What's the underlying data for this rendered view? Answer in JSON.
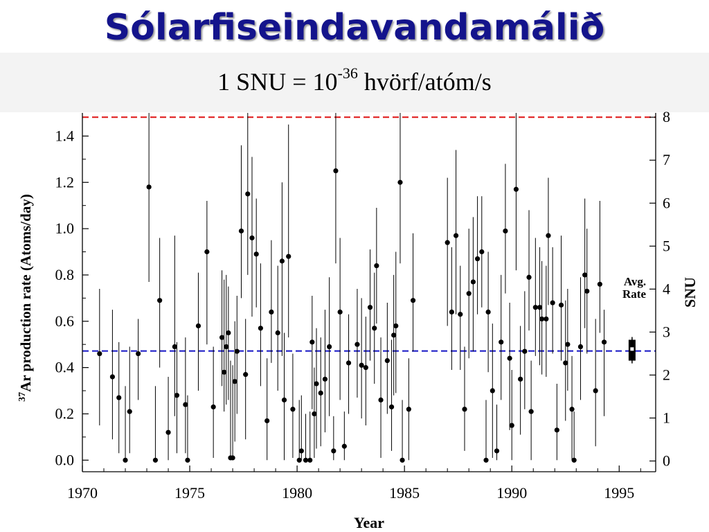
{
  "slide": {
    "title": "Sólarfiseindavandamálið",
    "subtitle_prefix": "1 SNU = 10",
    "subtitle_exponent": "-36",
    "subtitle_suffix": " hvörf/atóm/s"
  },
  "chart_data": {
    "type": "scatter",
    "xlabel": "Year",
    "ylabel_superscript": "37",
    "ylabel": "Ar production rate (Atoms/day)",
    "y2label": "SNU",
    "xlim": [
      1970,
      1996.7
    ],
    "ylim": [
      -0.05,
      1.5
    ],
    "y2lim": [
      -0.25,
      8.1
    ],
    "xticks": [
      1970,
      1975,
      1980,
      1985,
      1990,
      1995
    ],
    "yticks": [
      0.0,
      0.2,
      0.4,
      0.6,
      0.8,
      1.0,
      1.2,
      1.4
    ],
    "y2ticks": [
      0,
      1,
      2,
      3,
      4,
      5,
      6,
      7,
      8
    ],
    "xtick_labels": [
      "1970",
      "1975",
      "1980",
      "1985",
      "1990",
      "1995"
    ],
    "ytick_labels": [
      "0.0",
      "0.2",
      "0.4",
      "0.6",
      "0.8",
      "1.0",
      "1.2",
      "1.4"
    ],
    "y2tick_labels": [
      "0",
      "1",
      "2",
      "3",
      "4",
      "5",
      "6",
      "7",
      "8"
    ],
    "reference_lines": [
      {
        "value_snu": 8.0,
        "color": "#e02020"
      },
      {
        "value_snu": 2.56,
        "color": "#2020c8"
      }
    ],
    "avg_rate": {
      "label_line1": "Avg.",
      "label_line2": "Rate",
      "x": 1995.6,
      "y": 0.48,
      "low": 0.43,
      "high": 0.52
    },
    "points": [
      [
        1970.8,
        0.46,
        0.15,
        0.74
      ],
      [
        1971.4,
        0.36,
        0.09,
        0.65
      ],
      [
        1971.7,
        0.27,
        0.03,
        0.51
      ],
      [
        1972.0,
        0.0,
        0.0,
        0.32
      ],
      [
        1972.2,
        0.21,
        0.03,
        0.49
      ],
      [
        1972.6,
        0.46,
        0.26,
        0.61
      ],
      [
        1973.1,
        1.18,
        0.77,
        1.5
      ],
      [
        1973.4,
        0.0,
        0.0,
        0.32
      ],
      [
        1973.6,
        0.69,
        0.4,
        0.96
      ],
      [
        1974.0,
        0.12,
        0.0,
        0.36
      ],
      [
        1974.3,
        0.49,
        0.19,
        0.97
      ],
      [
        1974.4,
        0.28,
        0.03,
        0.51
      ],
      [
        1974.8,
        0.24,
        0.03,
        0.53
      ],
      [
        1974.9,
        0.0,
        0.0,
        0.28
      ],
      [
        1975.4,
        0.58,
        0.3,
        0.81
      ],
      [
        1975.8,
        0.9,
        0.5,
        1.12
      ],
      [
        1976.1,
        0.23,
        0.01,
        0.49
      ],
      [
        1976.5,
        0.53,
        0.32,
        0.82
      ],
      [
        1976.6,
        0.38,
        0.21,
        0.78
      ],
      [
        1976.7,
        0.49,
        0.24,
        0.8
      ],
      [
        1976.8,
        0.55,
        0.26,
        0.75
      ],
      [
        1976.9,
        0.01,
        0.0,
        0.43
      ],
      [
        1977.0,
        0.01,
        0.0,
        0.41
      ],
      [
        1977.1,
        0.34,
        0.08,
        0.6
      ],
      [
        1977.2,
        0.47,
        0.2,
        0.71
      ],
      [
        1977.4,
        0.99,
        0.7,
        1.36
      ],
      [
        1977.6,
        0.37,
        0.09,
        0.61
      ],
      [
        1977.7,
        1.15,
        0.8,
        1.5
      ],
      [
        1977.9,
        0.96,
        0.62,
        1.31
      ],
      [
        1978.1,
        0.89,
        0.66,
        1.13
      ],
      [
        1978.3,
        0.57,
        0.32,
        0.85
      ],
      [
        1978.6,
        0.17,
        0.0,
        0.44
      ],
      [
        1978.8,
        0.64,
        0.42,
        0.95
      ],
      [
        1979.1,
        0.55,
        0.3,
        0.84
      ],
      [
        1979.3,
        0.86,
        0.45,
        1.2
      ],
      [
        1979.4,
        0.26,
        0.0,
        0.55
      ],
      [
        1979.6,
        0.88,
        0.53,
        1.45
      ],
      [
        1979.8,
        0.22,
        0.01,
        0.46
      ],
      [
        1980.1,
        0.0,
        0.0,
        0.26
      ],
      [
        1980.2,
        0.04,
        0.0,
        0.28
      ],
      [
        1980.4,
        0.0,
        0.0,
        0.2
      ],
      [
        1980.6,
        0.0,
        0.0,
        0.21
      ],
      [
        1980.7,
        0.51,
        0.22,
        0.71
      ],
      [
        1980.8,
        0.2,
        0.01,
        0.4
      ],
      [
        1980.9,
        0.33,
        0.05,
        0.57
      ],
      [
        1981.1,
        0.29,
        0.06,
        0.53
      ],
      [
        1981.3,
        0.35,
        0.12,
        0.65
      ],
      [
        1981.5,
        0.49,
        0.19,
        0.79
      ],
      [
        1981.7,
        0.04,
        0.0,
        0.19
      ],
      [
        1981.8,
        1.25,
        0.85,
        1.5
      ],
      [
        1982.0,
        0.64,
        0.26,
        0.96
      ],
      [
        1982.2,
        0.06,
        0.0,
        0.21
      ],
      [
        1982.4,
        0.42,
        0.2,
        0.63
      ],
      [
        1982.8,
        0.5,
        0.27,
        0.74
      ],
      [
        1983.0,
        0.41,
        0.18,
        0.7
      ],
      [
        1983.2,
        0.4,
        0.15,
        0.62
      ],
      [
        1983.4,
        0.66,
        0.43,
        0.91
      ],
      [
        1983.6,
        0.57,
        0.33,
        0.81
      ],
      [
        1983.7,
        0.84,
        0.59,
        1.09
      ],
      [
        1983.9,
        0.26,
        0.01,
        0.53
      ],
      [
        1984.2,
        0.43,
        0.2,
        0.68
      ],
      [
        1984.4,
        0.23,
        0.04,
        0.52
      ],
      [
        1984.5,
        0.54,
        0.28,
        0.8
      ],
      [
        1984.6,
        0.58,
        0.29,
        0.9
      ],
      [
        1984.8,
        1.2,
        0.85,
        1.5
      ],
      [
        1984.9,
        0.0,
        0.0,
        0.26
      ],
      [
        1985.2,
        0.22,
        0.0,
        0.44
      ],
      [
        1985.4,
        0.69,
        0.47,
        0.98
      ],
      [
        1987.0,
        0.94,
        0.58,
        1.22
      ],
      [
        1987.2,
        0.64,
        0.39,
        0.92
      ],
      [
        1987.4,
        0.97,
        0.63,
        1.34
      ],
      [
        1987.6,
        0.63,
        0.39,
        0.84
      ],
      [
        1987.8,
        0.22,
        0.04,
        0.49
      ],
      [
        1988.0,
        0.72,
        0.44,
        1.0
      ],
      [
        1988.2,
        0.77,
        0.47,
        1.05
      ],
      [
        1988.4,
        0.87,
        0.63,
        1.14
      ],
      [
        1988.6,
        0.9,
        0.66,
        1.14
      ],
      [
        1988.8,
        0.0,
        0.0,
        0.26
      ],
      [
        1988.9,
        0.64,
        0.38,
        0.9
      ],
      [
        1989.1,
        0.3,
        0.01,
        0.59
      ],
      [
        1989.3,
        0.04,
        0.0,
        0.24
      ],
      [
        1989.5,
        0.51,
        0.26,
        0.8
      ],
      [
        1989.7,
        0.99,
        0.72,
        1.28
      ],
      [
        1989.9,
        0.44,
        0.13,
        0.68
      ],
      [
        1990.0,
        0.15,
        0.0,
        0.39
      ],
      [
        1990.2,
        1.17,
        0.82,
        1.5
      ],
      [
        1990.4,
        0.35,
        0.11,
        0.58
      ],
      [
        1990.6,
        0.47,
        0.22,
        0.73
      ],
      [
        1990.8,
        0.79,
        0.56,
        1.08
      ],
      [
        1990.9,
        0.21,
        0.0,
        0.43
      ],
      [
        1991.1,
        0.66,
        0.45,
        0.96
      ],
      [
        1991.3,
        0.66,
        0.41,
        0.92
      ],
      [
        1991.4,
        0.61,
        0.37,
        0.86
      ],
      [
        1991.6,
        0.61,
        0.36,
        0.84
      ],
      [
        1991.7,
        0.97,
        0.67,
        1.22
      ],
      [
        1991.9,
        0.68,
        0.46,
        0.92
      ],
      [
        1992.1,
        0.13,
        0.0,
        0.33
      ],
      [
        1992.3,
        0.67,
        0.43,
        0.97
      ],
      [
        1992.5,
        0.42,
        0.17,
        0.69
      ],
      [
        1992.6,
        0.5,
        0.3,
        0.74
      ],
      [
        1992.8,
        0.22,
        0.0,
        0.45
      ],
      [
        1992.9,
        0.0,
        0.0,
        0.21
      ],
      [
        1993.2,
        0.49,
        0.26,
        0.79
      ],
      [
        1993.4,
        0.8,
        0.57,
        1.13
      ],
      [
        1993.5,
        0.73,
        0.46,
        1.0
      ],
      [
        1993.9,
        0.3,
        0.06,
        0.61
      ],
      [
        1994.1,
        0.76,
        0.55,
        1.12
      ],
      [
        1994.3,
        0.51,
        0.19,
        0.65
      ]
    ]
  },
  "colors": {
    "title": "#14148c",
    "red_line": "#e02020",
    "blue_line": "#2020c8"
  }
}
